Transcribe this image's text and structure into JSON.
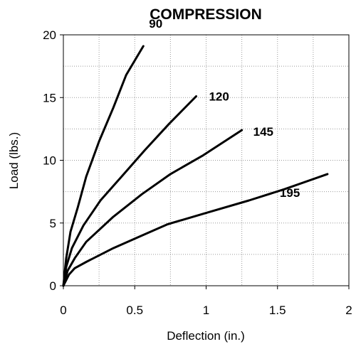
{
  "chart_data": {
    "type": "line",
    "title": "COMPRESSION",
    "xlabel": "Deflection (in.)",
    "ylabel": "Load (lbs.)",
    "xlim": [
      0,
      2
    ],
    "ylim": [
      0,
      20
    ],
    "xticks": [
      "0",
      "0.5",
      "1",
      "1.5",
      "2"
    ],
    "yticks": [
      "0",
      "5",
      "10",
      "15",
      "20"
    ],
    "grid": "dotted",
    "legend": "inline labels",
    "line_color": "#000000",
    "series": [
      {
        "name": "90",
        "x": [
          0,
          0.02,
          0.05,
          0.1,
          0.16,
          0.25,
          0.35,
          0.44,
          0.56
        ],
        "y": [
          0,
          2.2,
          4.3,
          6.2,
          8.7,
          11.5,
          14.2,
          16.8,
          19.1
        ]
      },
      {
        "name": "120",
        "x": [
          0,
          0.02,
          0.06,
          0.14,
          0.26,
          0.4,
          0.57,
          0.74,
          0.93
        ],
        "y": [
          0,
          1.5,
          3.0,
          4.8,
          6.8,
          8.6,
          10.8,
          12.9,
          15.1
        ]
      },
      {
        "name": "145",
        "x": [
          0,
          0.03,
          0.08,
          0.16,
          0.35,
          0.55,
          0.75,
          0.98,
          1.25
        ],
        "y": [
          0,
          1.2,
          2.2,
          3.5,
          5.5,
          7.3,
          8.9,
          10.4,
          12.4
        ]
      },
      {
        "name": "195",
        "x": [
          0,
          0.04,
          0.08,
          0.16,
          0.35,
          0.55,
          0.73,
          1.0,
          1.3,
          1.55,
          1.85
        ],
        "y": [
          0,
          0.9,
          1.4,
          1.9,
          3.0,
          4.0,
          4.9,
          5.8,
          6.8,
          7.7,
          8.9
        ]
      }
    ]
  }
}
